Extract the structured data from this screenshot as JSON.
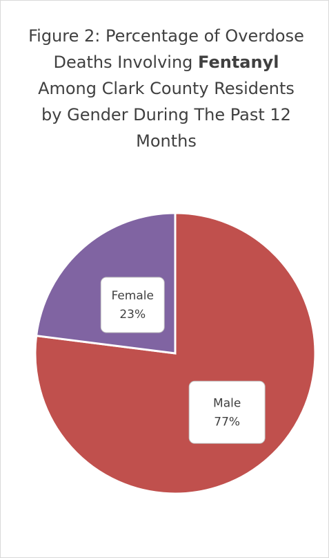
{
  "chart_data": {
    "type": "pie",
    "title": [
      "Figure 2: Percentage of Overdose Deaths Involving ",
      "Fentanyl",
      " Among Clark County Residents by Gender During The Past 12 Months"
    ],
    "categories": [
      "Male",
      "Female"
    ],
    "values": [
      77,
      23
    ],
    "value_labels": [
      "77%",
      "23%"
    ],
    "colors": [
      "#c0504d",
      "#8064a2"
    ]
  }
}
